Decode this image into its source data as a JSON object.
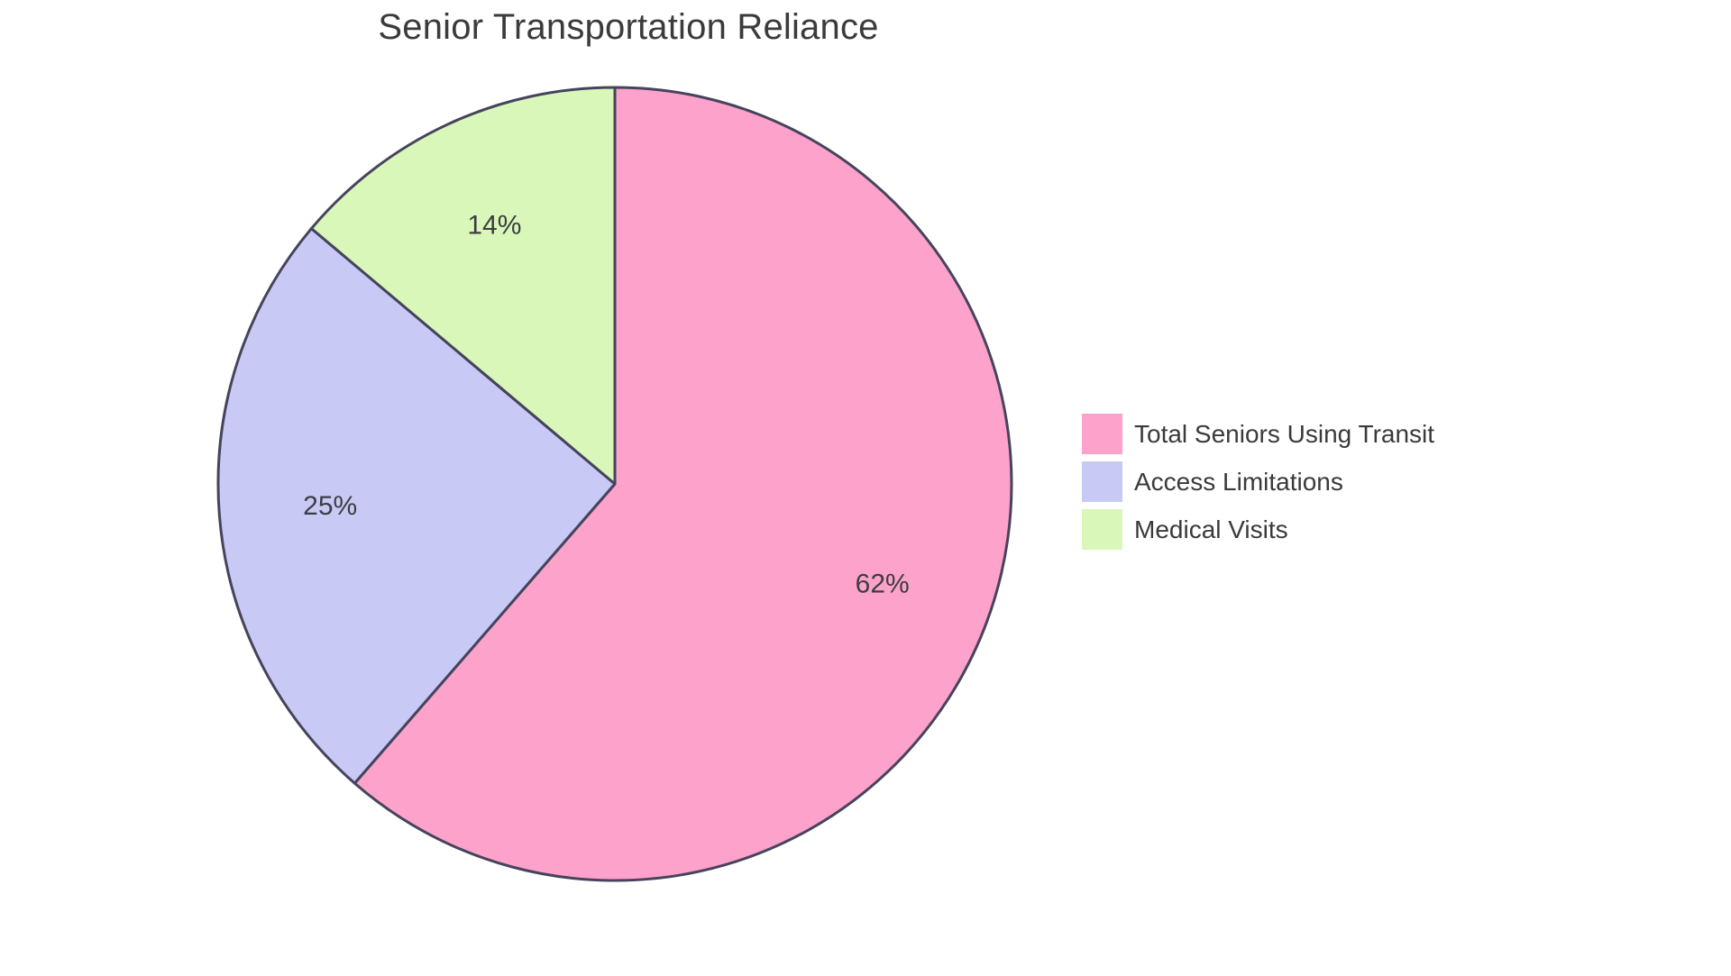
{
  "chart_data": {
    "type": "pie",
    "title": "Senior Transportation Reliance",
    "categories": [
      "Total Seniors Using Transit",
      "Access Limitations",
      "Medical Visits"
    ],
    "values": [
      62,
      25,
      14
    ],
    "percent_labels": [
      "62%",
      "25%",
      "14%"
    ],
    "colors": [
      "#FCA2CB",
      "#C9C9F6",
      "#D9F7B9"
    ],
    "stroke_color": "#45445C",
    "stroke_width": 3,
    "start_angle_deg": 0,
    "direction": "clockwise",
    "legend_position": "right",
    "label_color": "#3d3d44",
    "title_color": "#3b3b3b",
    "background": "#ffffff"
  }
}
